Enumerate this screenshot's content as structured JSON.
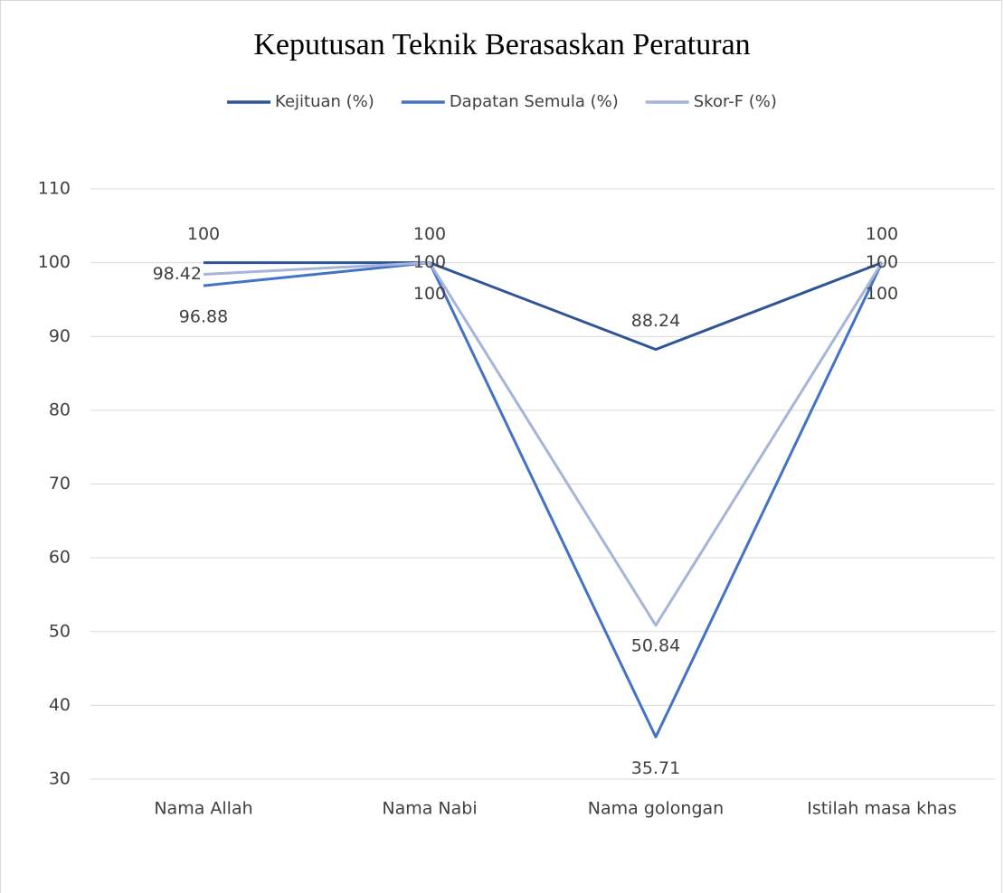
{
  "chart_data": {
    "type": "line",
    "title": "Keputusan Teknik Berasaskan Peraturan",
    "categories": [
      "Nama Allah",
      "Nama Nabi",
      "Nama golongan",
      "Istilah masa khas"
    ],
    "series": [
      {
        "name": "Kejituan (%)",
        "color": "#2f5597",
        "values": [
          100,
          100,
          88.24,
          100
        ]
      },
      {
        "name": "Dapatan Semula (%)",
        "color": "#4472c4",
        "values": [
          96.88,
          100,
          35.71,
          100
        ]
      },
      {
        "name": "Skor-F (%)",
        "color": "#a5b4d8",
        "values": [
          98.42,
          100,
          50.84,
          100
        ]
      }
    ],
    "ylim": [
      30,
      110
    ],
    "yticks": [
      30,
      40,
      50,
      60,
      70,
      80,
      90,
      100,
      110
    ],
    "grid": true,
    "legend": "top"
  }
}
